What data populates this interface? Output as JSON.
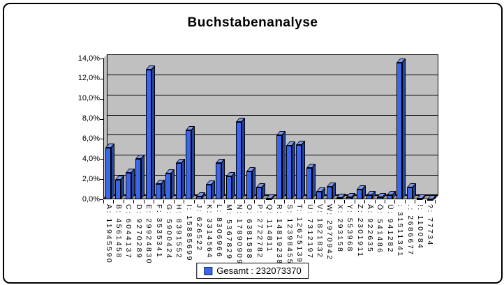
{
  "title": "Buchstabenanalyse",
  "legend": {
    "label": "Gesamt : 232073370"
  },
  "chart_data": {
    "type": "bar",
    "title": "Buchstabenanalyse",
    "total": 232073370,
    "legend_label": "Gesamt : 232073370",
    "legend_position": "bottom-center",
    "grid": true,
    "ylim": [
      0,
      14
    ],
    "ytick_step": 2,
    "ytick_labels": [
      "0,0%",
      "2,0%",
      "4,0%",
      "6,0%",
      "8,0%",
      "10,0%",
      "12,0%",
      "14,0%"
    ],
    "categories": [
      "A",
      "B",
      "C",
      "D",
      "E",
      "F",
      "G",
      "H",
      "I",
      "J",
      "K",
      "L",
      "M",
      "N",
      "O",
      "P",
      "Q",
      "R",
      "S",
      "T",
      "U",
      "V",
      "W",
      "X",
      "Y",
      "Z",
      "Ä",
      "Ö",
      "Ü",
      " ",
      ".",
      "!",
      "?"
    ],
    "counts": [
      11945590,
      4561458,
      6044137,
      9270289,
      29924830,
      3535341,
      5900424,
      8391552,
      15885699,
      626522,
      3314564,
      8306966,
      5367829,
      17890909,
      6381588,
      2722782,
      114811,
      14819238,
      12398455,
      12625139,
      7312197,
      1821832,
      2970942,
      293158,
      553968,
      2301911,
      922635,
      541486,
      941282,
      31511341,
      2686677,
      110084,
      77734
    ],
    "values_percent": [
      5.147,
      1.966,
      2.604,
      3.995,
      12.894,
      1.523,
      2.542,
      3.616,
      6.845,
      0.27,
      1.428,
      3.579,
      2.313,
      7.709,
      2.75,
      1.173,
      0.049,
      6.386,
      5.343,
      5.44,
      3.151,
      0.785,
      1.28,
      0.126,
      0.239,
      0.992,
      0.398,
      0.233,
      0.406,
      13.578,
      1.158,
      0.047,
      0.033
    ],
    "axis_labels": [
      "A: 11945590",
      "B: 4561458",
      "C: 6044137",
      "D: 9270289",
      "E: 29924830",
      "F: 3535341",
      "G: 5900424",
      "H: 8391552",
      "I: 15885699",
      "J: 626522",
      "K: 3314564",
      "L: 8306966",
      "M: 5367829",
      "N: 17890909",
      "O: 6381588",
      "P: 2722782",
      "Q: 114811",
      "R: 14819238",
      "S: 12398455",
      "T: 12625139",
      "U: 7312197",
      "V: 1821832",
      "W: 2970942",
      "X: 293158",
      "Y: 553968",
      "Z: 2301911",
      "Ä: 922635",
      "Ö: 541486",
      "Ü: 941282",
      " : 31511341",
      ".: 2686677",
      "!: 110084",
      "?: 77734"
    ],
    "colors": {
      "bar_front": "#3a66ec",
      "bar_top": "#7e99ee",
      "bar_side": "#24449e",
      "wall": "#c0c0c0",
      "side_wall": "#bdbdbd",
      "floor": "#9e9e9e",
      "gridline": "#000000",
      "legend_swatch": "#3a66ec"
    }
  }
}
